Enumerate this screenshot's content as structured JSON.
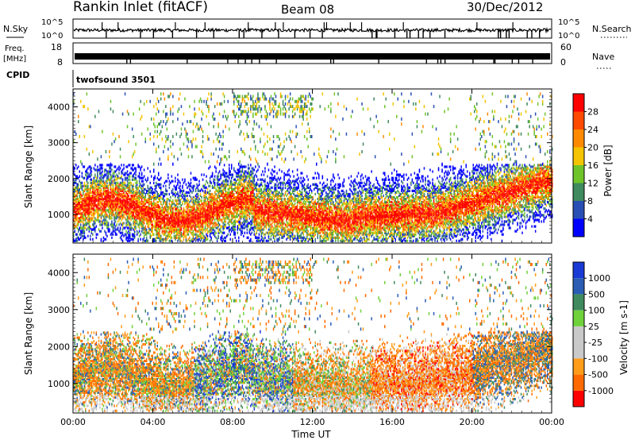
{
  "header": {
    "station": "Rankin Inlet (fitACF)",
    "beam": "Beam 08",
    "date": "30/Dec/2012"
  },
  "noise_panel": {
    "left_label": "N.Sky",
    "right_label": "N.Search",
    "left_ticks": [
      "10^5",
      "10^0"
    ],
    "right_ticks": [
      "10^5",
      "10^0"
    ]
  },
  "freq_panel": {
    "left_label_1": "Freq.",
    "left_label_2": "[MHz]",
    "right_label": "Nave",
    "left_ticks": [
      "18",
      "8"
    ],
    "right_ticks": [
      "60",
      "0"
    ]
  },
  "cpid": {
    "label": "CPID",
    "value": "twofsound 3501"
  },
  "colors": {
    "power_scale": [
      "#0000ff",
      "#2a4fb4",
      "#3f8a5e",
      "#6fc42a",
      "#f4c400",
      "#ff8a00",
      "#ff4a00",
      "#ff0000"
    ],
    "velocity_scale": [
      "#ff0000",
      "#ff6a00",
      "#ff9c1a",
      "#c9c9c9",
      "#c9c9c9",
      "#6fd23a",
      "#3f8a5e",
      "#2a5cb4",
      "#1a3ad6"
    ]
  },
  "chart_data": [
    {
      "type": "heatmap",
      "variable": "Power",
      "ylabel": "Slant Range [km]",
      "xlabel": "",
      "x_range_hours": [
        0,
        24
      ],
      "y_range_km": [
        200,
        4500
      ],
      "yticks": [
        1000,
        2000,
        3000,
        4000
      ],
      "colorbar": {
        "label": "Power [dB]",
        "range": [
          0,
          32
        ],
        "ticks": [
          4,
          8,
          12,
          16,
          20,
          24,
          28
        ]
      }
    },
    {
      "type": "heatmap",
      "variable": "Velocity",
      "ylabel": "Slant Range [km]",
      "xlabel": "Time UT",
      "x_range_hours": [
        0,
        24
      ],
      "xticks": [
        "00:00",
        "04:00",
        "08:00",
        "12:00",
        "16:00",
        "20:00",
        "00:00"
      ],
      "y_range_km": [
        200,
        4500
      ],
      "yticks": [
        1000,
        2000,
        3000,
        4000
      ],
      "colorbar": {
        "label": "Velocity [m s-1]",
        "ticks": [
          "1000",
          "500",
          "100",
          "25",
          "-25",
          "-100",
          "-500",
          "-1000"
        ]
      }
    }
  ]
}
